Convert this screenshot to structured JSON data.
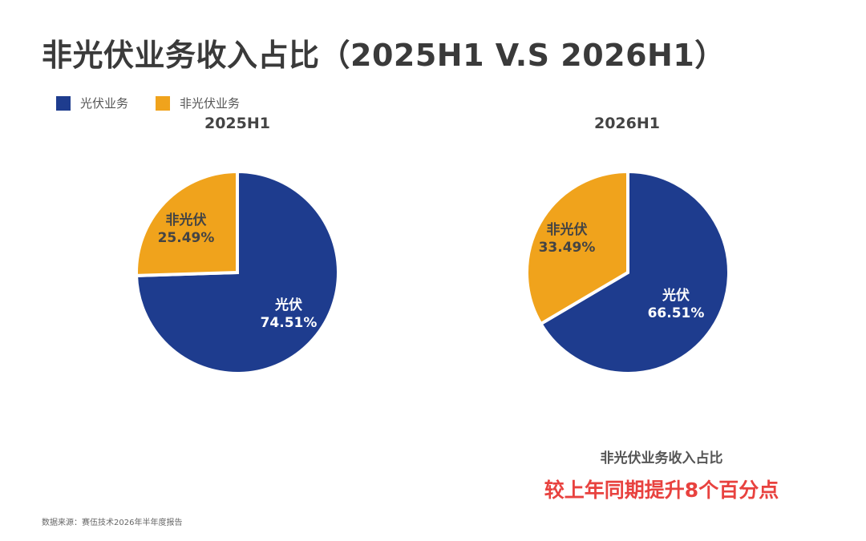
{
  "title": "非光伏业务收入占比（2025H1 V.S 2026H1）",
  "legend": [
    {
      "label": "光伏业务",
      "color": "#1e3c8e"
    },
    {
      "label": "非光伏业务",
      "color": "#f0a31c"
    }
  ],
  "chart_data": [
    {
      "type": "pie",
      "title": "2025H1",
      "slices": [
        {
          "name": "光伏",
          "value": 74.51,
          "label": "74.51%",
          "color": "#1e3c8e"
        },
        {
          "name": "非光伏",
          "value": 25.49,
          "label": "25.49%",
          "color": "#f0a31c"
        }
      ]
    },
    {
      "type": "pie",
      "title": "2026H1",
      "slices": [
        {
          "name": "光伏",
          "value": 66.51,
          "label": "66.51%",
          "color": "#1e3c8e"
        },
        {
          "name": "非光伏",
          "value": 33.49,
          "label": "33.49%",
          "color": "#f0a31c"
        }
      ]
    }
  ],
  "annotation": {
    "subtitle": "非光伏业务收入占比",
    "headline": "较上年同期提升8个百分点"
  },
  "source": "数据来源：赛伍技术2026年半年度报告"
}
